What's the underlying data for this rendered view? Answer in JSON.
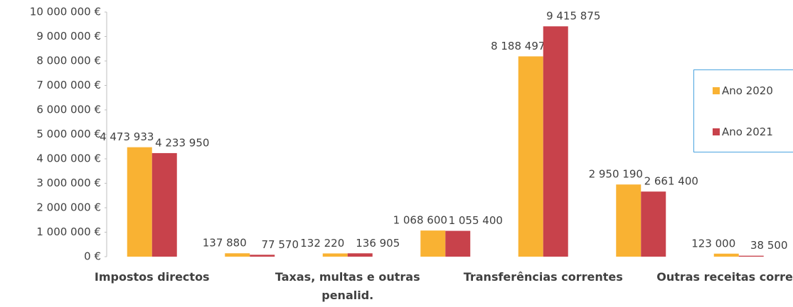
{
  "chart_data": {
    "type": "bar",
    "categories": [
      "Impostos directos",
      null,
      "Taxas, multas e outras penalid.",
      null,
      "Transferências correntes",
      null,
      "Outras receitas correntes"
    ],
    "series": [
      {
        "name": "Ano 2020",
        "color": "#f9b233",
        "values": [
          4473933,
          137880,
          132220,
          1068600,
          8188497,
          2950190,
          123000
        ],
        "value_labels": [
          "4 473 933",
          "137 880",
          "132 220",
          "1 068 600",
          "8 188 497",
          "2 950 190",
          "123 000"
        ]
      },
      {
        "name": "Ano 2021",
        "color": "#c8424b",
        "values": [
          4233950,
          77570,
          136905,
          1055400,
          9415875,
          2661400,
          38500
        ],
        "value_labels": [
          "4 233 950",
          "77 570",
          "136 905",
          "1 055 400",
          "9 415 875",
          "2 661 400",
          "38 500"
        ]
      }
    ],
    "ylim": [
      0,
      10000000
    ],
    "yticks": [
      {
        "value": 0,
        "label": "0 €"
      },
      {
        "value": 1000000,
        "label": "1 000 000 €"
      },
      {
        "value": 2000000,
        "label": "2 000 000 €"
      },
      {
        "value": 3000000,
        "label": "3 000 000 €"
      },
      {
        "value": 4000000,
        "label": "4 000 000 €"
      },
      {
        "value": 5000000,
        "label": "5 000 000 €"
      },
      {
        "value": 6000000,
        "label": "6 000 000 €"
      },
      {
        "value": 7000000,
        "label": "7 000 000 €"
      },
      {
        "value": 8000000,
        "label": "8 000 000 €"
      },
      {
        "value": 9000000,
        "label": "9 000 000 €"
      },
      {
        "value": 10000000,
        "label": "10 000 000 €"
      }
    ],
    "legend": "right"
  }
}
